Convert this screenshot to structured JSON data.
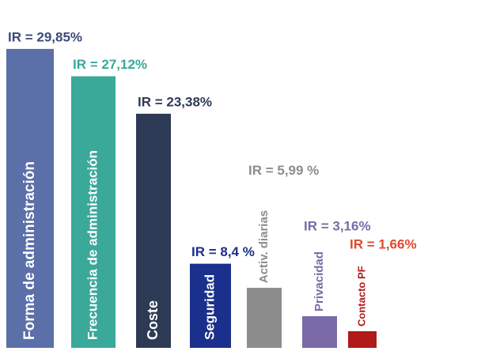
{
  "chart_data": {
    "type": "bar",
    "categories": [
      "Forma de administración",
      "Frecuencia de administración",
      "Coste",
      "Seguridad",
      "Activ. diarias",
      "Privacidad",
      "Contacto PF"
    ],
    "values": [
      29.85,
      27.12,
      23.38,
      8.4,
      5.99,
      3.16,
      1.66
    ],
    "value_labels": [
      "IR = 29,85%",
      "IR = 27,12%",
      "IR = 23,38%",
      "IR = 8,4 %",
      "IR = 5,99 %",
      "IR = 3,16%",
      "IR = 1,66%"
    ],
    "colors": [
      "#5b6fa8",
      "#3aa99a",
      "#2d3a55",
      "#1b2f8c",
      "#8c8c8c",
      "#7a6aa8",
      "#b01a1a"
    ],
    "label_colors": [
      "#3a4a7a",
      "#3aa99a",
      "#2d3a55",
      "#1b2f8c",
      "#8c8c8c",
      "#7a6aa8",
      "#e04a2a"
    ],
    "ylim": [
      0,
      30
    ]
  }
}
